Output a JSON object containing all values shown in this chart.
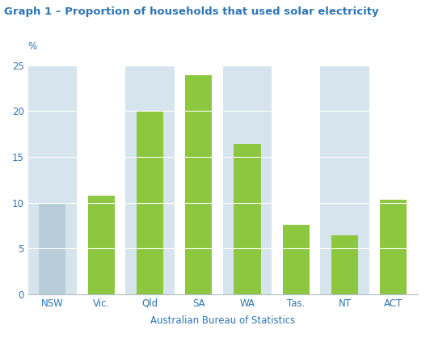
{
  "title": "Graph 1 – Proportion of households that used solar electricity",
  "categories": [
    "NSW",
    "Vic.",
    "Qld",
    "SA",
    "WA",
    "Tas.",
    "NT",
    "ACT"
  ],
  "values": [
    9.9,
    10.8,
    19.9,
    23.9,
    16.4,
    7.6,
    6.4,
    10.3
  ],
  "bar_color": "#8DC63F",
  "nsw_bar_color": "#B8CDD8",
  "ylabel": "%",
  "xlabel": "Australian Bureau of Statistics",
  "ylim": [
    0,
    25
  ],
  "yticks": [
    0,
    5,
    10,
    15,
    20,
    25
  ],
  "title_color": "#2E75B6",
  "tick_label_color": "#2E75B6",
  "background_color": "#FFFFFF",
  "plot_bg_color": "#FFFFFF",
  "col_bg_color": "#D6E4EE",
  "grid_color": "#FFFFFF",
  "title_fontsize": 9.5,
  "tick_fontsize": 8.5,
  "xlabel_fontsize": 8.5,
  "bar_width": 0.55
}
